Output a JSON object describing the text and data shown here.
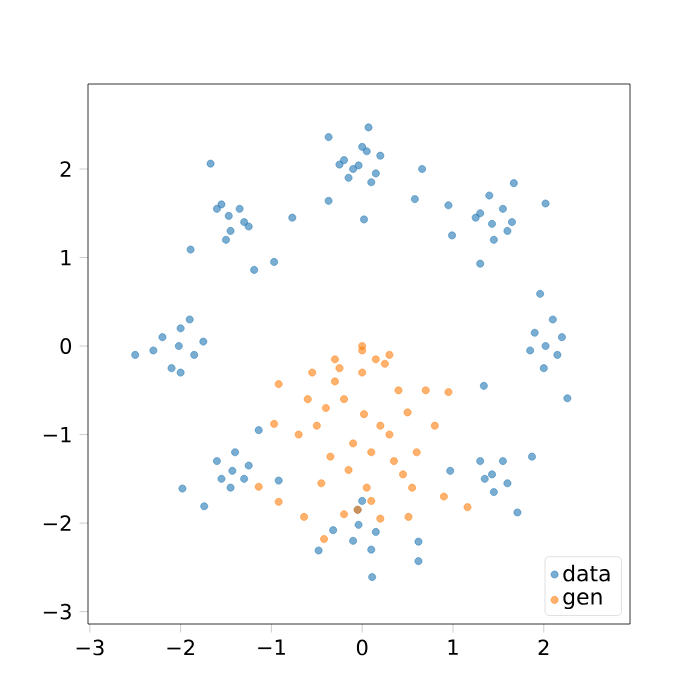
{
  "chart_data": {
    "type": "scatter",
    "marker": "circle",
    "legend": "bottom right",
    "xlim": [
      -3.02,
      2.95
    ],
    "ylim": [
      -3.14,
      2.96
    ],
    "xticks": [
      {
        "value": -3,
        "label": "−3"
      },
      {
        "value": -2,
        "label": "−2"
      },
      {
        "value": -1,
        "label": "−1"
      },
      0,
      1,
      2
    ],
    "yticks": [
      {
        "value": -3,
        "label": "−3"
      },
      {
        "value": -2,
        "label": "−2"
      },
      {
        "value": -1,
        "label": "−1"
      },
      0,
      1,
      2
    ],
    "series": [
      {
        "name": "data",
        "color": "#1f77b4",
        "x": [
          -0.04,
          -0.2,
          0.15,
          0.05,
          -0.15,
          0.2,
          -0.1,
          0.1,
          0.0,
          -0.25,
          -0.37,
          0.07,
          0.66,
          0.02,
          -0.37,
          0.58,
          -1.47,
          -1.6,
          -1.3,
          -1.45,
          -1.55,
          -1.35,
          -1.5,
          -1.25,
          -1.67,
          -0.77,
          -0.97,
          -1.19,
          -1.89,
          1.43,
          1.3,
          1.6,
          1.45,
          1.25,
          1.55,
          1.4,
          1.65,
          0.95,
          2.02,
          1.3,
          1.67,
          0.99,
          2.02,
          1.9,
          2.15,
          2.0,
          2.2,
          1.85,
          2.1,
          1.96,
          1.34,
          2.26,
          -2.02,
          -2.2,
          -1.85,
          -2.0,
          -2.1,
          -1.9,
          -2.3,
          -2.5,
          -2.0,
          -1.75,
          -1.43,
          -1.6,
          -1.3,
          -1.45,
          -1.55,
          -1.25,
          -1.4,
          -1.98,
          -1.74,
          -1.14,
          -0.92,
          1.43,
          1.3,
          1.6,
          1.45,
          1.55,
          1.35,
          1.71,
          0.97,
          1.87,
          -0.04,
          -0.32,
          0.15,
          0.0,
          -0.1,
          0.1,
          -0.05,
          0.11,
          -0.48,
          0.62,
          0.62
        ],
        "values": [
          2.04,
          2.1,
          1.95,
          2.2,
          1.9,
          2.15,
          2.0,
          1.85,
          2.25,
          2.05,
          2.36,
          2.47,
          2.0,
          1.43,
          1.64,
          1.66,
          1.47,
          1.55,
          1.4,
          1.3,
          1.6,
          1.55,
          1.2,
          1.35,
          2.06,
          1.45,
          0.95,
          0.86,
          1.09,
          1.38,
          1.5,
          1.3,
          1.2,
          1.45,
          1.55,
          1.7,
          1.4,
          1.59,
          1.61,
          0.93,
          1.84,
          1.25,
          0.0,
          0.15,
          -0.1,
          -0.25,
          0.1,
          -0.05,
          0.3,
          0.59,
          -0.45,
          -0.59,
          0.0,
          0.1,
          -0.1,
          0.2,
          -0.25,
          0.3,
          -0.05,
          -0.1,
          -0.3,
          0.05,
          -1.41,
          -1.3,
          -1.5,
          -1.6,
          -1.5,
          -1.35,
          -1.2,
          -1.61,
          -1.81,
          -0.95,
          -1.52,
          -1.45,
          -1.3,
          -1.55,
          -1.65,
          -1.3,
          -1.5,
          -1.88,
          -1.41,
          -1.25,
          -2.02,
          -2.08,
          -2.1,
          -1.75,
          -2.2,
          -2.3,
          -1.85,
          -2.61,
          -2.31,
          -2.43,
          -2.21
        ]
      },
      {
        "name": "gen",
        "color": "#ff7f0e",
        "x": [
          0.02,
          -0.2,
          0.2,
          -0.4,
          0.4,
          0.0,
          -0.1,
          0.1,
          -0.3,
          0.3,
          -0.5,
          0.5,
          0.6,
          -0.6,
          0.0,
          0.15,
          -0.15,
          0.35,
          -0.35,
          0.05,
          0.7,
          -0.7,
          0.25,
          -0.25,
          0.45,
          -0.45,
          0.8,
          -0.55,
          0.1,
          -0.05,
          0.2,
          -0.2,
          0.0,
          0.3,
          -0.3,
          0.55,
          -0.92,
          -0.97,
          0.95,
          0.9,
          1.16,
          -0.64,
          -0.42,
          -0.92,
          0.51,
          -1.14
        ],
        "values": [
          -0.77,
          -0.6,
          -0.9,
          -0.7,
          -0.5,
          -0.3,
          -1.1,
          -1.2,
          -0.4,
          -1.0,
          -0.9,
          -0.75,
          -1.2,
          -0.6,
          -0.05,
          -0.15,
          -1.4,
          -1.3,
          -1.25,
          -1.6,
          -0.5,
          -1.0,
          -0.2,
          -0.25,
          -1.45,
          -1.55,
          -0.9,
          -0.3,
          -1.75,
          -1.85,
          -1.95,
          -1.9,
          0.0,
          -0.1,
          -0.15,
          -1.6,
          -0.43,
          -0.88,
          -0.52,
          -1.7,
          -1.82,
          -1.93,
          -2.18,
          -1.76,
          -1.93,
          -1.59
        ]
      }
    ]
  }
}
